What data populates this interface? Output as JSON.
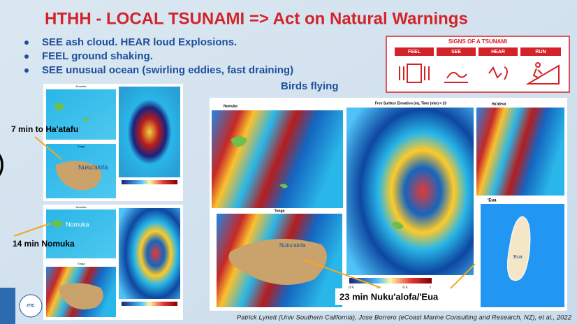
{
  "title": "HTHH - LOCAL TSUNAMI => Act on Natural Warnings",
  "bullets": [
    "SEE ash cloud.  HEAR loud Explosions.",
    "FEEL ground shaking.",
    "SEE unusual ocean (swirling eddies, fast draining)"
  ],
  "bullet_continuation": "Birds flying",
  "signs": {
    "title": "SIGNS OF A TSUNAMI",
    "steps": [
      "FEEL",
      "SEE",
      "HEAR",
      "RUN"
    ]
  },
  "edge_fragment": ")",
  "annotations": [
    "7 min to Ha'atafu",
    "14 min Nomuka",
    "23 min Nuku'alofa/'Eua"
  ],
  "panels": {
    "small_top": {
      "map1": "Nomuka",
      "map2": "Tonga",
      "place": "Nuku'alofa"
    },
    "small_bottom": {
      "map1": "Nomuka",
      "place": "Nomuka",
      "map2": "Tonga"
    },
    "large": {
      "nomuka": "Nomuka",
      "center_title": "Free Surface Elevation (m), Time (min) = 23",
      "haafeva": "Ha'afeva",
      "tonga": "Tonga",
      "place": "Nuku'alofa",
      "eua": "'Eua",
      "eua_place": "'Eua",
      "colorbar_ticks": [
        "-0.5",
        "0",
        "0.5",
        "1"
      ]
    }
  },
  "logo": "ITIC",
  "credit": "Patrick Lynett (Univ Southern California), Jose Borrero (eCoast Marine Consulting and Research, NZ), et al., 2022"
}
